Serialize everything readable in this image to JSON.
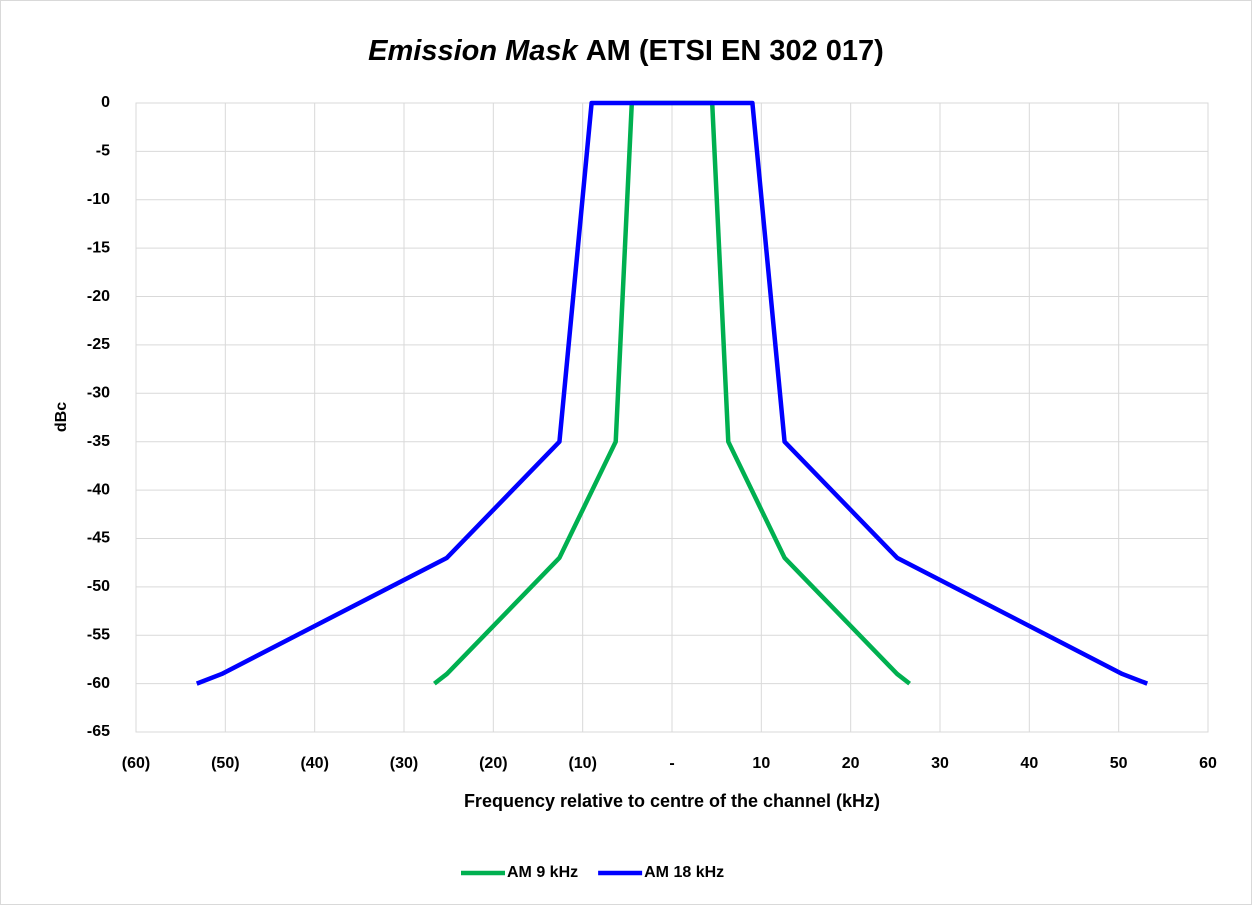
{
  "chart_data": {
    "type": "line",
    "title": [
      "Emission Mask",
      "AM (ETSI EN 302 017)"
    ],
    "xlabel": "Frequency relative to centre of the channel (kHz)",
    "ylabel": "dBc",
    "xlim": [
      -60,
      60
    ],
    "xticks": [
      {
        "value": -60,
        "label": "(60)"
      },
      {
        "value": -50,
        "label": "(50)"
      },
      {
        "value": -40,
        "label": "(40)"
      },
      {
        "value": -30,
        "label": "(30)"
      },
      {
        "value": -20,
        "label": "(20)"
      },
      {
        "value": -10,
        "label": "(10)"
      },
      {
        "value": 0,
        "label": "-"
      },
      10,
      20,
      30,
      40,
      50,
      60
    ],
    "ylim": [
      -65,
      0
    ],
    "yticks": [
      0,
      -5,
      -10,
      -15,
      -20,
      -25,
      -30,
      -35,
      -40,
      -45,
      -50,
      -55,
      -60,
      -65
    ],
    "grid": true,
    "legend": "bottom",
    "series": [
      {
        "name": "AM 9 kHz",
        "color": "#00b050",
        "x": [
          -26.6,
          -25.2,
          -12.6,
          -6.3,
          -4.5,
          4.5,
          6.3,
          12.6,
          25.2,
          26.6
        ],
        "values": [
          -60,
          -59,
          -47,
          -35,
          0,
          0,
          -35,
          -47,
          -59,
          -60
        ]
      },
      {
        "name": "AM 18 kHz",
        "color": "#0000ff",
        "x": [
          -53.2,
          -50.4,
          -25.2,
          -12.6,
          -9,
          9,
          12.6,
          25.2,
          50.4,
          53.2
        ],
        "values": [
          -60,
          -59,
          -47,
          -35,
          0,
          0,
          -35,
          -47,
          -59,
          -60
        ]
      }
    ]
  }
}
